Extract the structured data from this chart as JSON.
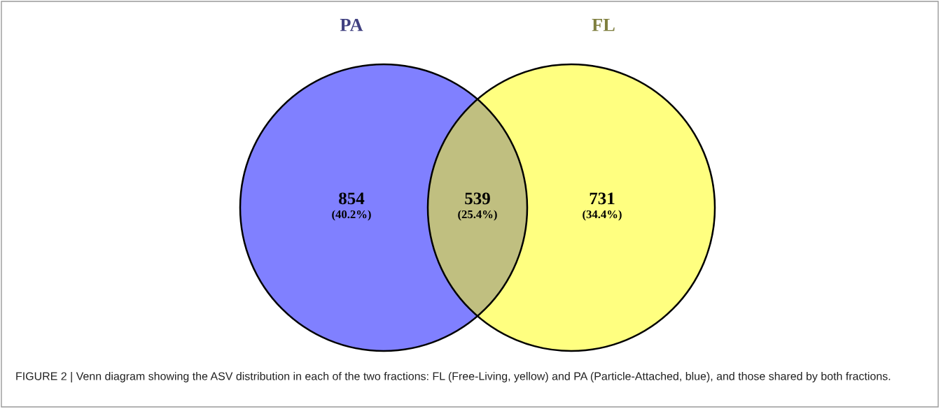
{
  "chart_data": {
    "type": "other",
    "categories": [
      null,
      null,
      null
    ],
    "values": [
      854,
      539,
      731
    ],
    "data_labels": true,
    "colors": [
      "#8080ff",
      "#c0bf80",
      "#ffff80"
    ],
    "annotations": [
      "PA",
      "FL",
      "(40.2%)",
      "(25.4%)",
      "(34.4%)",
      "FIGURE 2 | Venn diagram showing the ASV distribution in each of the two fractions: FL (Free-Living, yellow) and PA (Particle-Attached, blue), and those shared by both fractions."
    ]
  }
}
